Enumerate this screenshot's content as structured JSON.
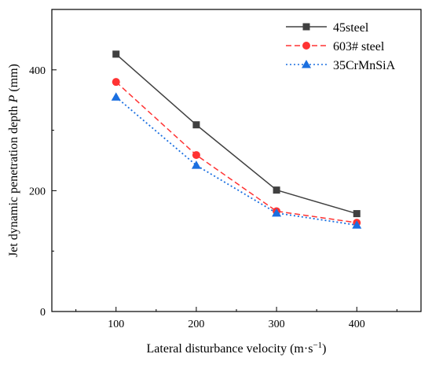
{
  "chart_data": {
    "type": "line",
    "x": [
      100,
      200,
      300,
      400
    ],
    "series": [
      {
        "name": "45steel",
        "values": [
          426,
          309,
          201,
          162
        ],
        "color": "#404040",
        "line": "solid",
        "marker": "square"
      },
      {
        "name": "603# steel",
        "values": [
          380,
          259,
          166,
          147
        ],
        "color": "#ff3333",
        "line": "dashed",
        "marker": "circle"
      },
      {
        "name": "35CrMnSiA",
        "values": [
          355,
          242,
          163,
          143
        ],
        "color": "#1a6fe0",
        "line": "dotted",
        "marker": "triangle"
      }
    ],
    "xlim": [
      20,
      480
    ],
    "ylim": [
      0,
      500
    ],
    "xticks": [
      100,
      200,
      300,
      400
    ],
    "yticks": [
      0,
      200,
      400
    ],
    "xlabel": {
      "main": "Lateral disturbance velocity (m·s",
      "sup": "−1",
      "tail": ")"
    },
    "ylabel": {
      "main": "Jet dynamic penetration depth ",
      "italic": "P",
      "tail": " (mm)"
    },
    "grid": false,
    "legend_position": "top-right"
  }
}
